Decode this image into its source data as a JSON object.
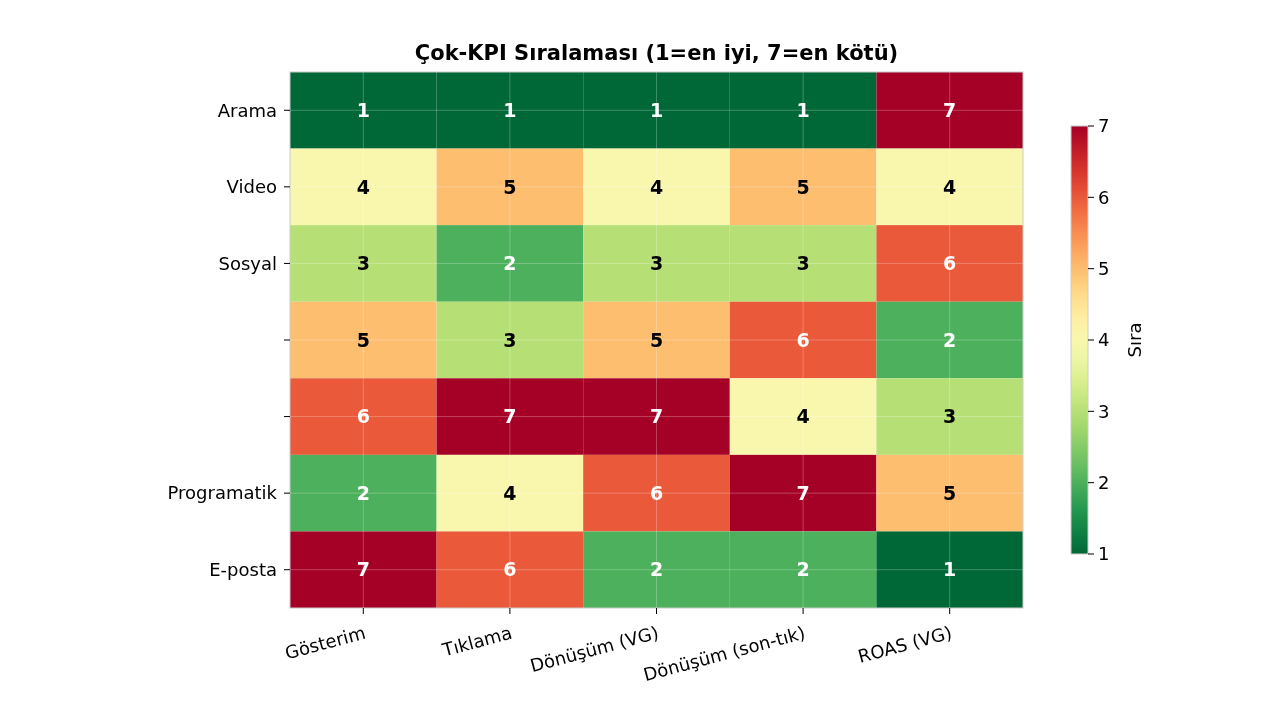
{
  "chart_data": {
    "type": "heatmap",
    "title": "Çok-KPI Sıralaması (1=en iyi, 7=en kötü)",
    "categories": [
      "Gösterim",
      "Tıklama",
      "Dönüşüm (VG)",
      "Dönüşüm (son-tık)",
      "ROAS (VG)"
    ],
    "y_categories": [
      "Arama",
      "Video",
      "Sosyal",
      null,
      null,
      "Programatik",
      "E-posta"
    ],
    "cells": [
      [
        1,
        1,
        1,
        1,
        7
      ],
      [
        4,
        5,
        4,
        5,
        4
      ],
      [
        3,
        2,
        3,
        3,
        6
      ],
      [
        5,
        3,
        5,
        6,
        2
      ],
      [
        6,
        7,
        7,
        4,
        3
      ],
      [
        2,
        4,
        6,
        7,
        5
      ],
      [
        7,
        6,
        2,
        2,
        1
      ]
    ],
    "clim": [
      1,
      7
    ],
    "cticks": [
      1,
      2,
      3,
      4,
      5,
      6,
      7
    ],
    "clabel": "Sıra",
    "data_labels": true,
    "grid": true
  }
}
